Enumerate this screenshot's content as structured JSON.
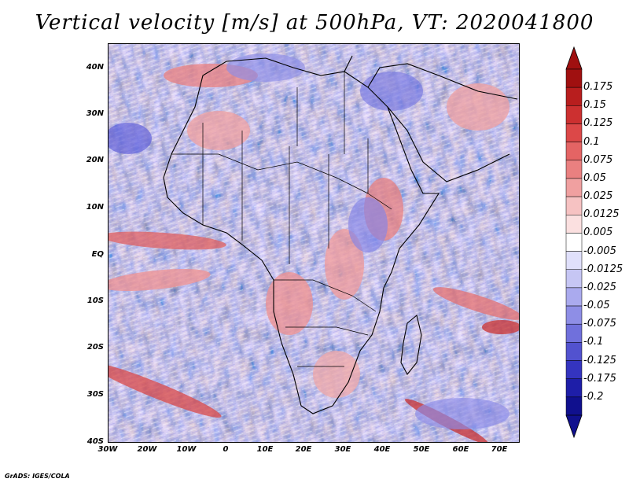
{
  "title": "Vertical velocity [m/s] at 500hPa, VT: 2020041800",
  "credit": "GrADS: IGES/COLA",
  "lat_labels": [
    "40N",
    "30N",
    "20N",
    "10N",
    "EQ",
    "10S",
    "20S",
    "30S",
    "40S"
  ],
  "lon_labels": [
    "30W",
    "20W",
    "10W",
    "0",
    "10E",
    "20E",
    "30E",
    "40E",
    "50E",
    "60E",
    "70E"
  ],
  "colorbar": {
    "levels": [
      "0.175",
      "0.15",
      "0.125",
      "0.1",
      "0.075",
      "0.05",
      "0.025",
      "0.0125",
      "0.005",
      "-0.005",
      "-0.0125",
      "-0.025",
      "-0.05",
      "-0.075",
      "-0.1",
      "-0.125",
      "-0.175",
      "-0.2"
    ],
    "colors": [
      "#a01010",
      "#b81e1e",
      "#cc3030",
      "#dc4848",
      "#e46464",
      "#ea8080",
      "#f0a0a0",
      "#f6c2c2",
      "#fbe0e0",
      "#ffffff",
      "#e0e0fb",
      "#c6c6f4",
      "#aaaaee",
      "#8e8ee6",
      "#7070dc",
      "#5252cf",
      "#3434bf",
      "#1e1ea8",
      "#10108e"
    ]
  }
}
